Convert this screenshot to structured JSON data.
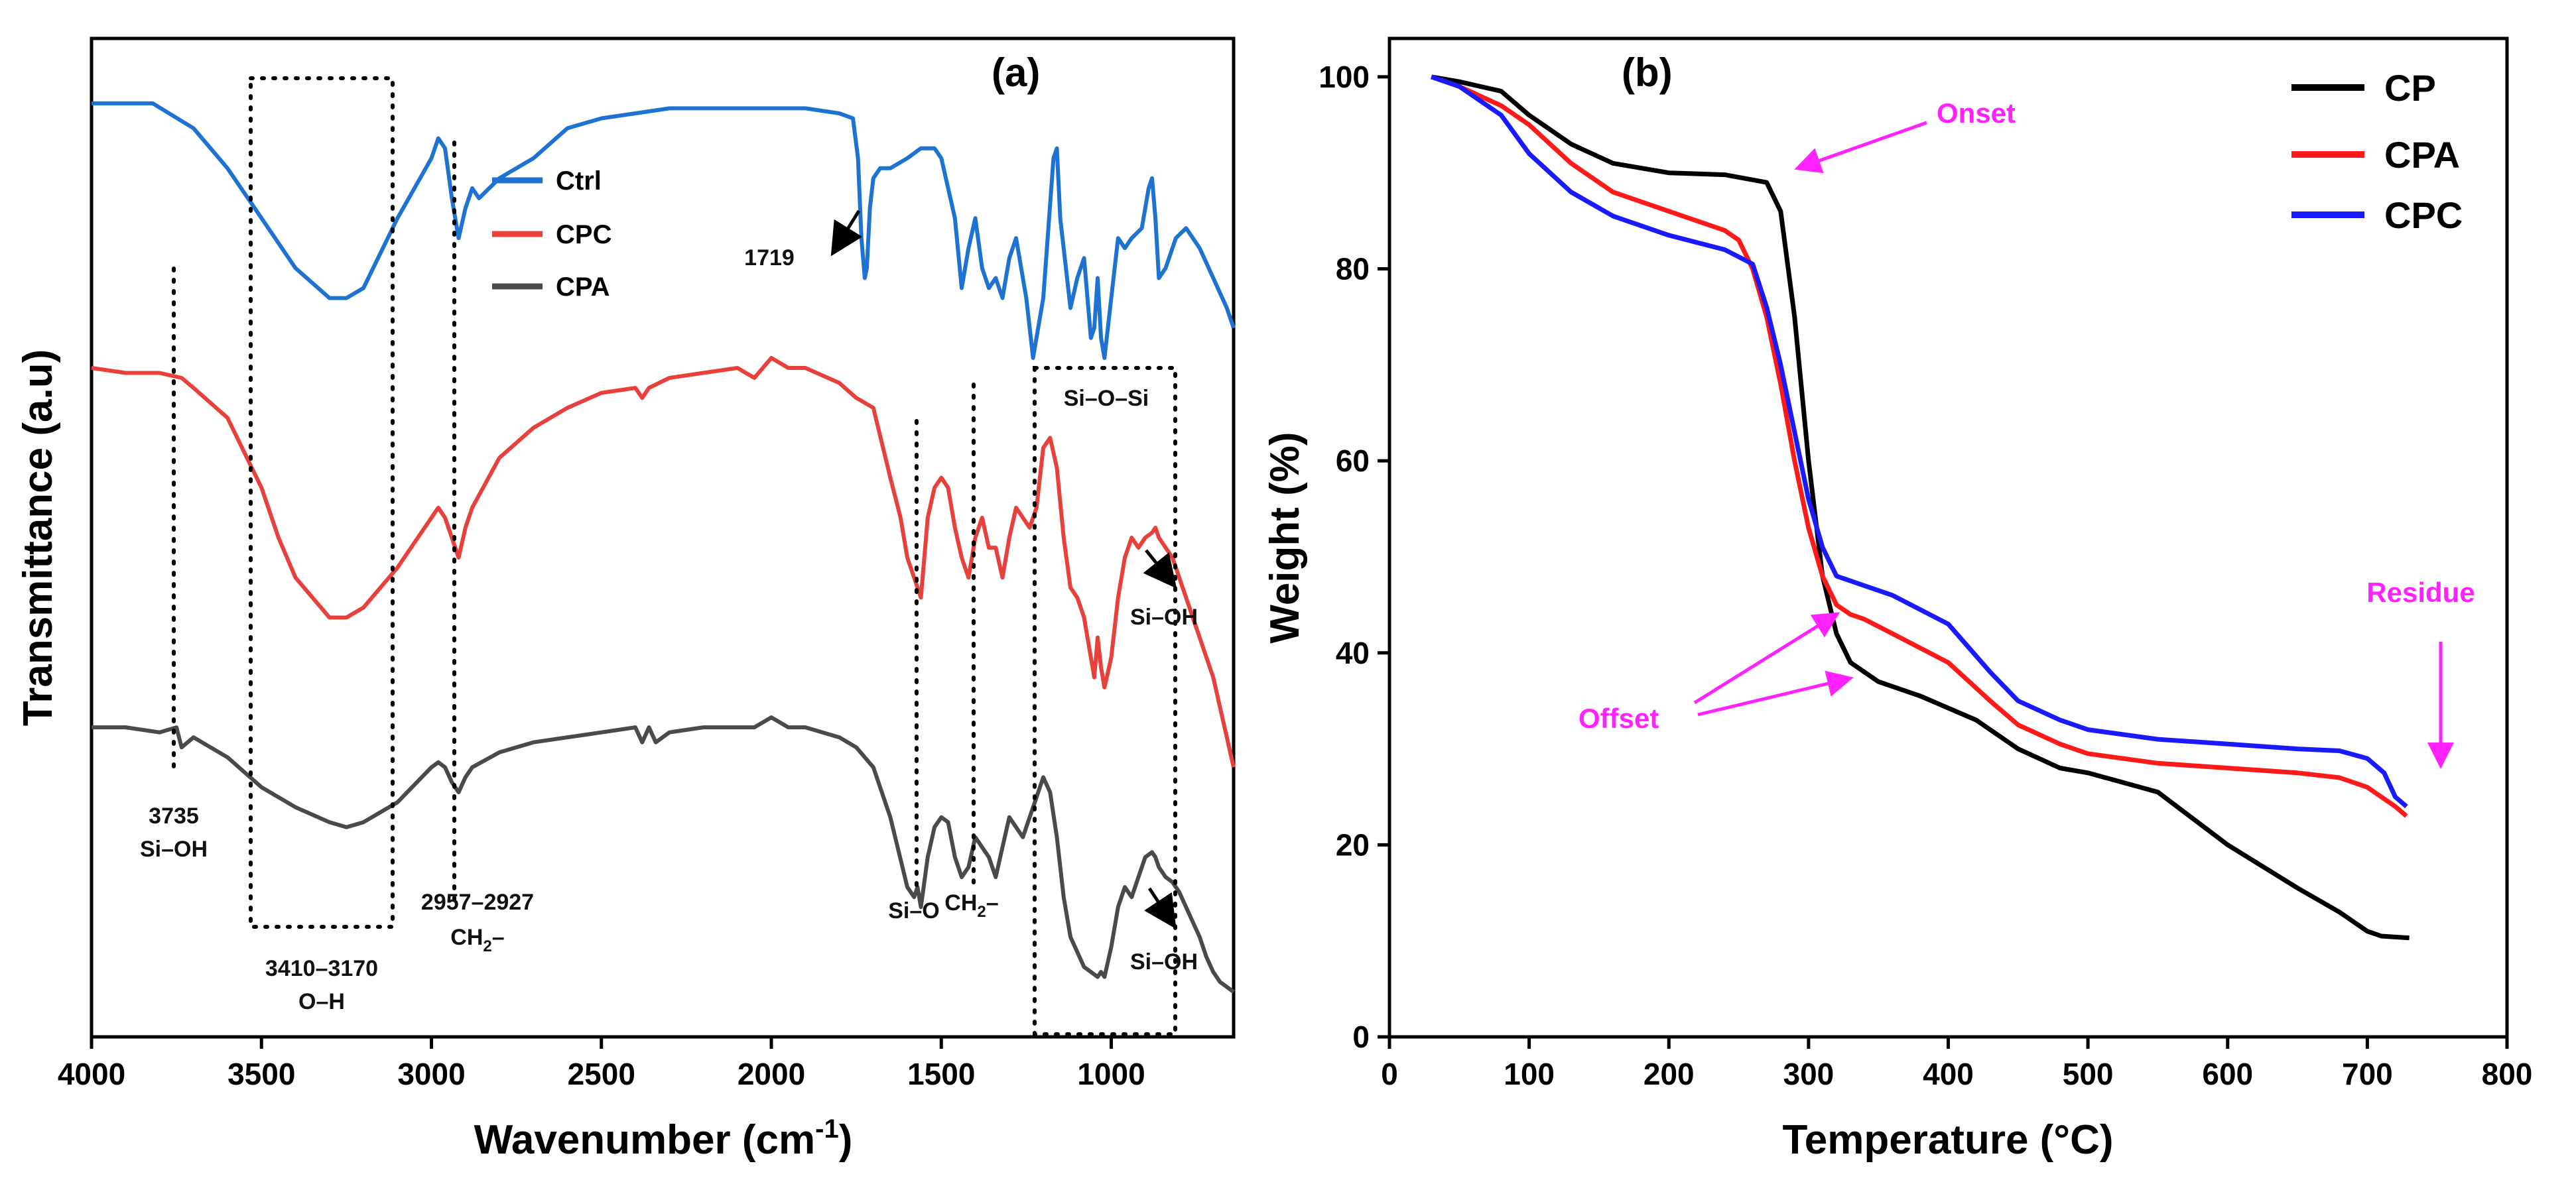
{
  "chart_data": [
    {
      "panel": "(a)",
      "type": "line",
      "xlabel": "Wavenumber (cm",
      "xlabel_sup": "-1",
      "xlabel_end": ")",
      "ylabel": "Transmittance (a.u)",
      "xlim": [
        4000,
        640
      ],
      "xticks": [
        {
          "v": 4000,
          "label": "4000"
        },
        {
          "v": 3500,
          "label": "3500"
        },
        {
          "v": 3000,
          "label": "3000"
        },
        {
          "v": 2500,
          "label": "2500"
        },
        {
          "v": 2000,
          "label": "2000"
        },
        {
          "v": 1500,
          "label": "1500"
        },
        {
          "v": 1000,
          "label": "1000"
        }
      ],
      "ylim": [
        0,
        100
      ],
      "series": [
        {
          "name": "Ctrl",
          "color": "#1e73d2",
          "x": [
            4000,
            3820,
            3700,
            3600,
            3500,
            3400,
            3300,
            3250,
            3200,
            3100,
            3000,
            2980,
            2960,
            2940,
            2920,
            2900,
            2880,
            2860,
            2800,
            2700,
            2600,
            2500,
            2400,
            2300,
            2200,
            2100,
            2000,
            1900,
            1800,
            1760,
            1745,
            1735,
            1725,
            1719,
            1710,
            1700,
            1680,
            1650,
            1600,
            1560,
            1520,
            1500,
            1460,
            1440,
            1420,
            1400,
            1380,
            1360,
            1340,
            1320,
            1300,
            1280,
            1250,
            1230,
            1200,
            1170,
            1160,
            1150,
            1120,
            1100,
            1080,
            1060,
            1050,
            1040,
            1030,
            1020,
            1000,
            980,
            960,
            940,
            910,
            890,
            880,
            870,
            860,
            840,
            810,
            780,
            740,
            700,
            660,
            640
          ],
          "y": [
            93.5,
            93.5,
            91,
            87,
            82,
            77,
            74,
            74,
            75,
            82,
            88,
            90,
            89,
            84,
            80,
            83,
            85,
            84,
            86,
            88,
            91,
            92,
            92.5,
            93,
            93,
            93,
            93,
            93,
            92.5,
            92,
            88,
            80,
            76,
            77,
            83,
            86,
            87,
            87,
            88,
            89,
            89,
            88,
            82,
            75,
            79,
            82,
            77,
            75,
            76,
            74,
            78,
            80,
            74,
            68,
            74,
            88,
            89,
            82,
            73,
            76,
            78,
            70,
            71,
            76,
            70,
            68,
            74,
            80,
            79,
            80,
            81,
            85,
            86,
            82,
            76,
            77,
            80,
            81,
            79,
            76,
            73,
            71
          ]
        },
        {
          "name": "CPC",
          "color": "#e8413c",
          "x": [
            4000,
            3900,
            3800,
            3735,
            3700,
            3600,
            3500,
            3450,
            3400,
            3300,
            3250,
            3200,
            3100,
            3000,
            2980,
            2960,
            2940,
            2920,
            2900,
            2880,
            2800,
            2700,
            2600,
            2500,
            2400,
            2380,
            2360,
            2300,
            2200,
            2100,
            2050,
            2000,
            1950,
            1900,
            1800,
            1750,
            1700,
            1650,
            1620,
            1600,
            1580,
            1560,
            1540,
            1520,
            1500,
            1480,
            1460,
            1440,
            1420,
            1400,
            1380,
            1360,
            1340,
            1320,
            1300,
            1280,
            1260,
            1240,
            1220,
            1200,
            1180,
            1160,
            1140,
            1120,
            1100,
            1080,
            1060,
            1050,
            1040,
            1030,
            1020,
            1000,
            980,
            960,
            940,
            920,
            900,
            880,
            870,
            860,
            840,
            820,
            800,
            780,
            760,
            740,
            720,
            700,
            680,
            660,
            640
          ],
          "y": [
            67,
            66.5,
            66.5,
            66,
            65,
            62,
            55,
            50,
            46,
            42,
            42,
            43,
            47,
            52,
            53,
            52,
            50,
            48,
            51,
            53,
            58,
            61,
            63,
            64.5,
            65,
            64,
            65,
            66,
            66.5,
            67,
            66,
            68,
            67,
            67,
            65.5,
            64,
            63,
            56,
            52,
            48,
            46,
            44,
            52,
            55,
            56,
            55,
            51,
            48,
            46,
            50,
            52,
            49,
            49,
            46,
            50,
            53,
            52,
            51,
            53,
            59,
            60,
            57,
            50,
            45,
            44,
            42,
            38,
            36,
            40,
            37,
            35,
            38,
            44,
            48,
            50,
            49,
            50,
            50.5,
            51,
            50,
            49,
            48,
            46,
            44,
            42,
            40,
            38,
            36,
            33,
            30,
            27
          ]
        },
        {
          "name": "CPA",
          "color": "#4a4a4a",
          "x": [
            4000,
            3900,
            3800,
            3750,
            3735,
            3700,
            3600,
            3500,
            3400,
            3300,
            3250,
            3200,
            3100,
            3000,
            2980,
            2960,
            2940,
            2920,
            2900,
            2880,
            2800,
            2700,
            2600,
            2500,
            2400,
            2380,
            2360,
            2340,
            2300,
            2200,
            2100,
            2050,
            2000,
            1950,
            1900,
            1800,
            1750,
            1700,
            1650,
            1600,
            1580,
            1570,
            1560,
            1540,
            1520,
            1500,
            1480,
            1460,
            1440,
            1420,
            1400,
            1380,
            1360,
            1340,
            1320,
            1300,
            1280,
            1260,
            1240,
            1220,
            1200,
            1180,
            1160,
            1140,
            1120,
            1100,
            1080,
            1060,
            1040,
            1030,
            1020,
            1000,
            980,
            960,
            940,
            920,
            900,
            880,
            870,
            860,
            840,
            820,
            800,
            780,
            760,
            740,
            720,
            700,
            680,
            660,
            640
          ],
          "y": [
            31,
            31,
            30.5,
            31,
            29,
            30,
            28,
            25,
            23,
            21.5,
            21,
            21.5,
            23.5,
            27,
            27.5,
            27,
            25.5,
            24.5,
            26,
            27,
            28.5,
            29.5,
            30,
            30.5,
            31,
            29.5,
            31,
            29.5,
            30.5,
            31,
            31,
            31,
            32,
            31,
            31,
            30,
            29,
            27,
            22,
            15,
            14,
            15,
            13,
            18,
            21,
            22,
            21.5,
            18,
            16,
            17,
            20,
            19,
            18,
            16,
            19,
            22,
            21,
            20,
            22,
            24,
            26,
            24.5,
            20,
            14,
            10,
            8.5,
            7,
            6.5,
            6,
            6.5,
            6,
            9,
            13,
            15,
            14,
            16,
            18,
            18.5,
            18,
            17,
            16,
            15.5,
            14.5,
            13,
            11.5,
            10,
            8,
            6.5,
            5.5,
            5,
            4.5
          ]
        }
      ],
      "legend": [
        "Ctrl",
        "CPC",
        "CPA"
      ],
      "annotations": {
        "a3735": "3735",
        "a3735b": "Si–OH",
        "a3410": "3410–3170",
        "a3410b": "O–H",
        "a2957": "2957–2927",
        "a2957b_pre": "CH",
        "a2957b_sub": "2",
        "a2957b_post": "–",
        "a1719": "1719",
        "siosi": "Si–O–Si",
        "sio": "Si–O",
        "ch2_pre": "CH",
        "ch2_sub": "2",
        "ch2_post": "–",
        "sioh1": "Si–OH",
        "sioh2": "Si–OH"
      }
    },
    {
      "panel": "(b)",
      "type": "line",
      "xlabel": "Temperature (°C)",
      "ylabel": "Weight (%)",
      "xlim": [
        0,
        800
      ],
      "ylim": [
        0,
        104
      ],
      "xticks": [
        {
          "v": 0,
          "label": "0"
        },
        {
          "v": 100,
          "label": "100"
        },
        {
          "v": 200,
          "label": "200"
        },
        {
          "v": 300,
          "label": "300"
        },
        {
          "v": 400,
          "label": "400"
        },
        {
          "v": 500,
          "label": "500"
        },
        {
          "v": 600,
          "label": "600"
        },
        {
          "v": 700,
          "label": "700"
        },
        {
          "v": 800,
          "label": "800"
        }
      ],
      "yticks": [
        {
          "v": 0,
          "label": "0"
        },
        {
          "v": 20,
          "label": "20"
        },
        {
          "v": 40,
          "label": "40"
        },
        {
          "v": 60,
          "label": "60"
        },
        {
          "v": 80,
          "label": "80"
        },
        {
          "v": 100,
          "label": "100"
        }
      ],
      "series": [
        {
          "name": "CP",
          "color": "#000000",
          "x": [
            30,
            50,
            80,
            100,
            130,
            160,
            200,
            240,
            270,
            280,
            290,
            300,
            310,
            320,
            330,
            340,
            350,
            380,
            420,
            450,
            480,
            500,
            550,
            600,
            650,
            680,
            700,
            710,
            730
          ],
          "y": [
            100,
            99.5,
            98.5,
            96,
            93,
            91,
            90,
            89.8,
            89,
            86,
            75,
            60,
            48,
            42,
            39,
            38,
            37,
            35.5,
            33,
            30,
            28,
            27.5,
            25.5,
            20,
            15.5,
            13,
            11,
            10.5,
            10.3
          ]
        },
        {
          "name": "CPA",
          "color": "#ff1a1a",
          "x": [
            30,
            50,
            80,
            100,
            130,
            160,
            200,
            240,
            250,
            260,
            270,
            280,
            290,
            300,
            310,
            320,
            330,
            340,
            360,
            400,
            430,
            450,
            480,
            500,
            550,
            600,
            650,
            680,
            700,
            710,
            720,
            728
          ],
          "y": [
            100,
            99,
            97,
            95,
            91,
            88,
            86,
            84,
            83,
            80,
            75,
            68,
            60,
            53,
            48,
            45,
            44,
            43.5,
            42,
            39,
            35,
            32.5,
            30.5,
            29.5,
            28.5,
            28,
            27.5,
            27,
            26,
            25,
            24,
            23
          ]
        },
        {
          "name": "CPC",
          "color": "#1a1aff",
          "x": [
            30,
            50,
            80,
            100,
            130,
            160,
            200,
            240,
            260,
            270,
            280,
            290,
            300,
            310,
            320,
            330,
            340,
            360,
            400,
            430,
            450,
            480,
            500,
            550,
            600,
            650,
            680,
            700,
            712,
            720,
            728
          ],
          "y": [
            100,
            99,
            96,
            92,
            88,
            85.5,
            83.5,
            82,
            80.5,
            76,
            70,
            63,
            56,
            51,
            48,
            47.5,
            47,
            46,
            43,
            38,
            35,
            33,
            32,
            31,
            30.5,
            30,
            29.8,
            29,
            27.5,
            25,
            24
          ]
        }
      ],
      "legend": [
        "CP",
        "CPA",
        "CPC"
      ],
      "annotations": {
        "onset": "Onset",
        "offset": "Offset",
        "residue": "Residue"
      },
      "annotation_color": "#ff22ff"
    }
  ]
}
